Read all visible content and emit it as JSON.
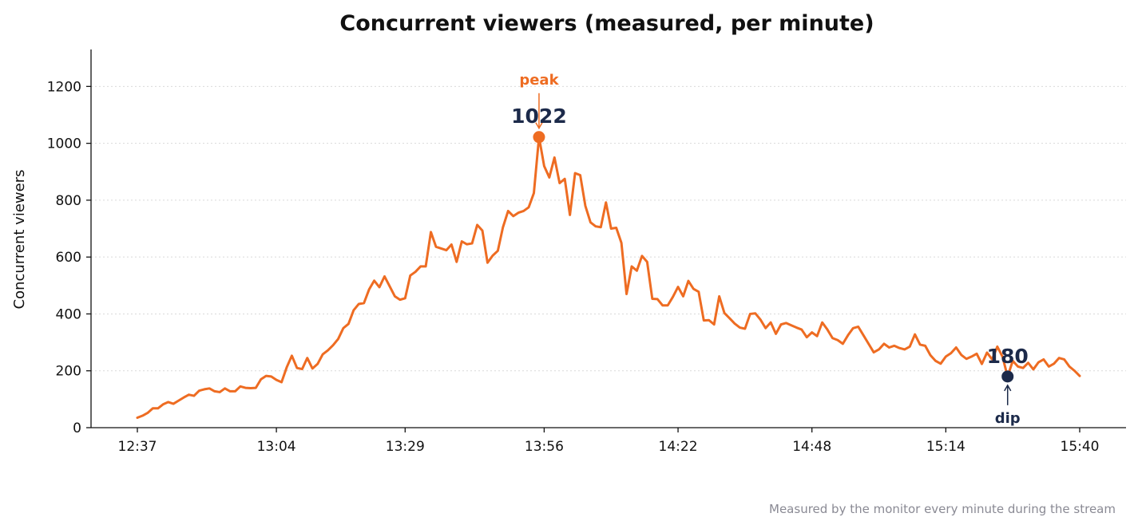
{
  "chart_data": {
    "type": "line",
    "title": "Concurrent viewers (measured, per minute)",
    "ylabel": "Concurrent viewers",
    "xlabel": "",
    "caption": "Measured by the monitor every minute during the stream",
    "x_ticks": [
      "12:37",
      "13:04",
      "13:29",
      "13:56",
      "14:22",
      "14:48",
      "15:14",
      "15:40"
    ],
    "y_ticks": [
      "0",
      "200",
      "400",
      "600",
      "800",
      "1000",
      "1200"
    ],
    "ylim": [
      0,
      1330
    ],
    "x_range": [
      "12:37",
      "15:40"
    ],
    "grid": {
      "y": true,
      "x": false,
      "style": "dotted"
    },
    "legend": "none",
    "colors": {
      "line": "#ee6c22",
      "peak": "#ee6c22",
      "dip": "#1c2a4a",
      "axis": "#111111",
      "grid": "#d9d9d9"
    },
    "series": [
      {
        "x_start": "12:37",
        "x_step_minutes": 1,
        "values": [
          35,
          42,
          52,
          68,
          68,
          82,
          90,
          84,
          95,
          106,
          116,
          112,
          130,
          135,
          138,
          128,
          125,
          138,
          128,
          128,
          145,
          140,
          139,
          140,
          170,
          182,
          180,
          168,
          160,
          212,
          253,
          210,
          206,
          245,
          208,
          224,
          258,
          272,
          290,
          312,
          350,
          365,
          413,
          435,
          438,
          486,
          517,
          494,
          532,
          497,
          462,
          450,
          455,
          535,
          548,
          567,
          567,
          688,
          636,
          630,
          624,
          644,
          583,
          655,
          645,
          648,
          713,
          693,
          580,
          605,
          622,
          705,
          762,
          744,
          756,
          762,
          775,
          825,
          1022,
          920,
          880,
          950,
          860,
          875,
          748,
          895,
          888,
          780,
          722,
          708,
          705,
          792,
          700,
          703,
          650,
          470,
          567,
          552,
          604,
          583,
          453,
          452,
          430,
          430,
          460,
          495,
          462,
          516,
          488,
          478,
          377,
          378,
          363,
          462,
          403,
          385,
          366,
          352,
          348,
          400,
          402,
          380,
          350,
          370,
          330,
          363,
          368,
          360,
          352,
          345,
          318,
          335,
          322,
          370,
          345,
          315,
          308,
          295,
          325,
          350,
          355,
          325,
          295,
          265,
          275,
          295,
          282,
          288,
          280,
          275,
          285,
          328,
          292,
          288,
          255,
          235,
          225,
          250,
          262,
          282,
          256,
          242,
          250,
          260,
          224,
          264,
          240,
          285,
          250,
          180,
          235,
          215,
          210,
          228,
          205,
          230,
          240,
          215,
          225,
          245,
          240,
          215,
          200,
          182
        ]
      }
    ],
    "annotations": [
      {
        "kind": "peak",
        "label": "peak",
        "value_label": "1022",
        "index": 78,
        "value": 1022
      },
      {
        "kind": "dip",
        "label": "dip",
        "value_label": "180",
        "index": 169,
        "value": 180
      }
    ]
  }
}
